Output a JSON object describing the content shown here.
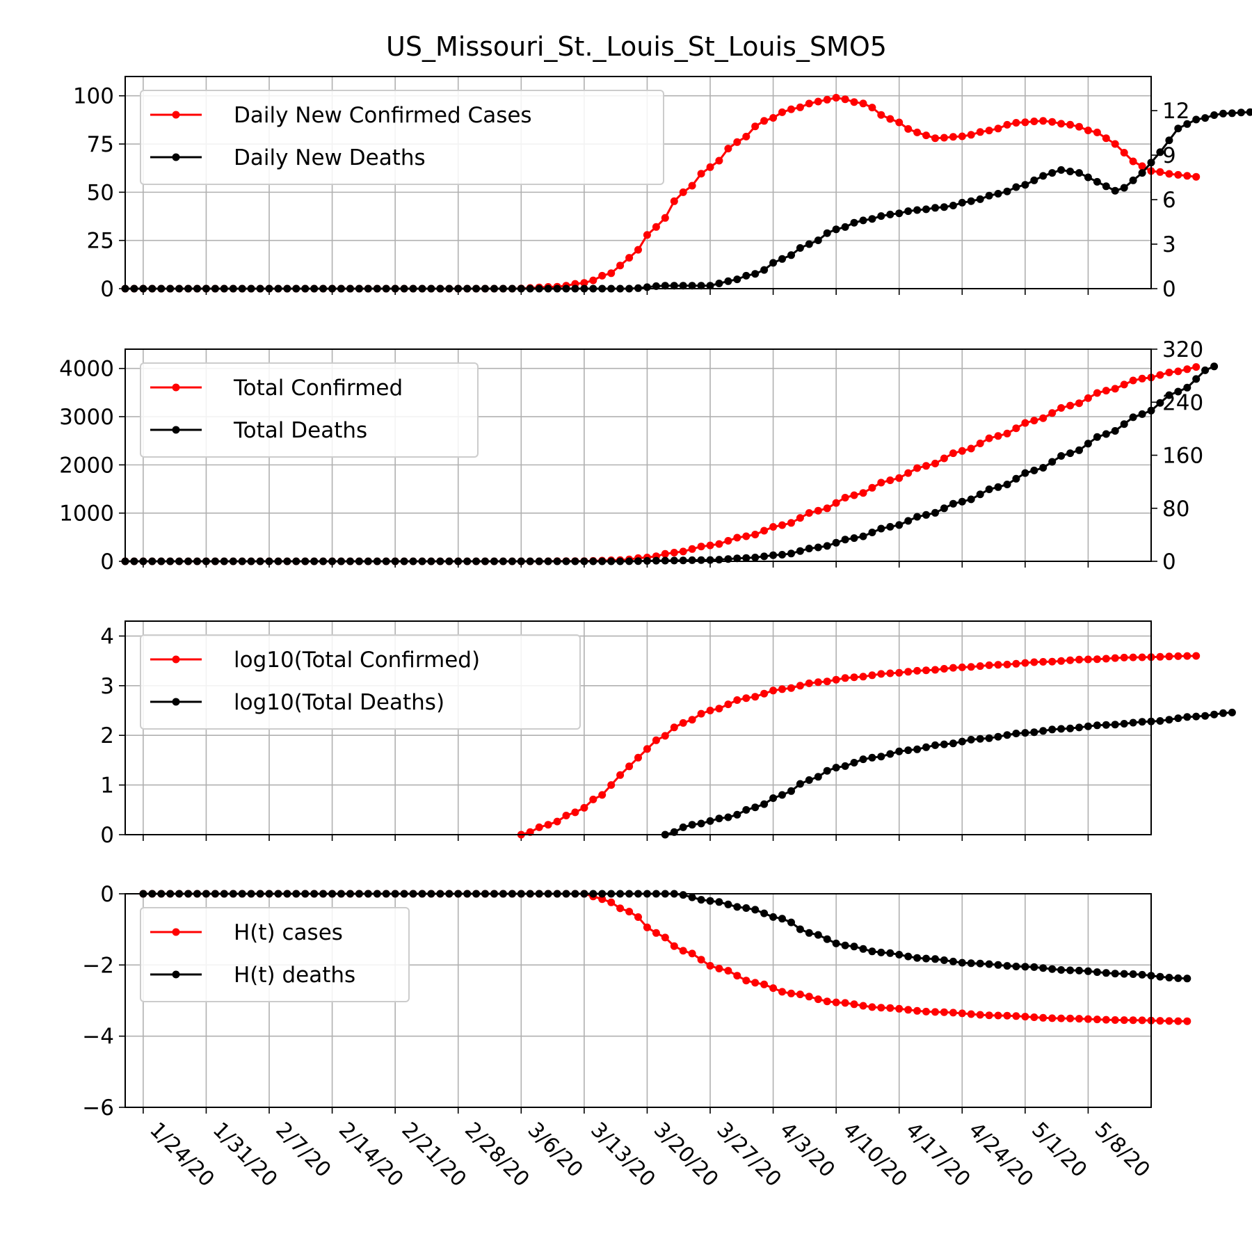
{
  "title": "US_Missouri_St._Louis_St_Louis_SMO5",
  "colors": {
    "cases": "#ff0000",
    "deaths": "#000000",
    "grid": "#b0b0b0"
  },
  "x_dates": [
    "1/24/20",
    "1/31/20",
    "2/7/20",
    "2/14/20",
    "2/21/20",
    "2/28/20",
    "3/6/20",
    "3/13/20",
    "3/20/20",
    "3/27/20",
    "4/3/20",
    "4/10/20",
    "4/17/20",
    "4/24/20",
    "5/1/20",
    "5/8/20"
  ],
  "chart_data": [
    {
      "type": "line",
      "panel": "daily",
      "x_range": [
        "1/22/20",
        "5/15/20"
      ],
      "legend_placement": "top-left",
      "grid": true,
      "ylim": [
        0,
        110
      ],
      "yticks": [
        "0",
        "25",
        "50",
        "75",
        "100"
      ],
      "ylim_right": [
        0,
        14.3
      ],
      "yticks_right": [
        "0",
        "3",
        "6",
        "9",
        "12"
      ],
      "series": [
        {
          "name": "Daily New Confirmed Cases",
          "axis": "left",
          "points": [
            [
              "1/22/20",
              0
            ],
            [
              "3/5/20",
              0
            ],
            [
              "3/10/20",
              1
            ],
            [
              "3/13/20",
              3
            ],
            [
              "3/16/20",
              8
            ],
            [
              "3/18/20",
              16
            ],
            [
              "3/21/20",
              32
            ],
            [
              "3/24/20",
              50
            ],
            [
              "3/27/20",
              63
            ],
            [
              "3/30/20",
              76
            ],
            [
              "4/2/20",
              87
            ],
            [
              "4/5/20",
              93
            ],
            [
              "4/8/20",
              97
            ],
            [
              "4/10/20",
              99
            ],
            [
              "4/13/20",
              96
            ],
            [
              "4/16/20",
              88
            ],
            [
              "4/19/20",
              81
            ],
            [
              "4/21/20",
              78
            ],
            [
              "4/24/20",
              79
            ],
            [
              "4/27/20",
              82
            ],
            [
              "4/30/20",
              86
            ],
            [
              "5/3/20",
              87
            ],
            [
              "5/6/20",
              85
            ],
            [
              "5/9/20",
              81
            ],
            [
              "5/11/20",
              75
            ],
            [
              "5/13/20",
              66
            ],
            [
              "5/15/20",
              61
            ],
            [
              "5/18/20",
              59
            ],
            [
              "5/20/20",
              58
            ]
          ]
        },
        {
          "name": "Daily New Deaths",
          "axis": "right",
          "points": [
            [
              "1/22/20",
              0
            ],
            [
              "3/18/20",
              0
            ],
            [
              "3/22/20",
              0.2
            ],
            [
              "3/27/20",
              0.2
            ],
            [
              "3/29/20",
              0.5
            ],
            [
              "4/1/20",
              1
            ],
            [
              "4/4/20",
              2
            ],
            [
              "4/7/20",
              3
            ],
            [
              "4/10/20",
              4
            ],
            [
              "4/13/20",
              4.6
            ],
            [
              "4/16/20",
              5
            ],
            [
              "4/19/20",
              5.3
            ],
            [
              "4/22/20",
              5.5
            ],
            [
              "4/25/20",
              5.9
            ],
            [
              "4/28/20",
              6.4
            ],
            [
              "5/1/20",
              7
            ],
            [
              "5/3/20",
              7.6
            ],
            [
              "5/5/20",
              8
            ],
            [
              "5/7/20",
              7.8
            ],
            [
              "5/9/20",
              7.2
            ],
            [
              "5/11/20",
              6.6
            ],
            [
              "5/12/20",
              6.8
            ],
            [
              "5/14/20",
              7.8
            ],
            [
              "5/16/20",
              9.2
            ],
            [
              "5/18/20",
              10.8
            ],
            [
              "5/20/20",
              11.4
            ],
            [
              "5/23/20",
              11.8
            ],
            [
              "5/26/20",
              11.9
            ],
            [
              "5/29/20",
              11.9
            ]
          ]
        }
      ]
    },
    {
      "type": "line",
      "panel": "totals",
      "legend_placement": "top-left",
      "grid": true,
      "ylim": [
        0,
        4400
      ],
      "yticks": [
        "0",
        "1000",
        "2000",
        "3000",
        "4000"
      ],
      "ylim_right": [
        0,
        320
      ],
      "yticks_right": [
        "0",
        "80",
        "160",
        "240",
        "320"
      ],
      "series": [
        {
          "name": "Total Confirmed",
          "axis": "left",
          "points": [
            [
              "1/22/20",
              0
            ],
            [
              "3/7/20",
              0
            ],
            [
              "3/13/20",
              5
            ],
            [
              "3/17/20",
              25
            ],
            [
              "3/20/20",
              80
            ],
            [
              "3/23/20",
              180
            ],
            [
              "3/27/20",
              330
            ],
            [
              "3/31/20",
              520
            ],
            [
              "4/4/20",
              750
            ],
            [
              "4/8/20",
              1050
            ],
            [
              "4/12/20",
              1370
            ],
            [
              "4/16/20",
              1680
            ],
            [
              "4/20/20",
              1980
            ],
            [
              "4/24/20",
              2290
            ],
            [
              "4/28/20",
              2600
            ],
            [
              "5/2/20",
              2920
            ],
            [
              "5/6/20",
              3230
            ],
            [
              "5/10/20",
              3540
            ],
            [
              "5/14/20",
              3790
            ],
            [
              "5/18/20",
              3940
            ],
            [
              "5/20/20",
              4030
            ]
          ]
        },
        {
          "name": "Total Deaths",
          "axis": "right",
          "points": [
            [
              "1/22/20",
              0
            ],
            [
              "3/17/20",
              0
            ],
            [
              "3/22/20",
              1
            ],
            [
              "3/27/20",
              2
            ],
            [
              "3/31/20",
              5
            ],
            [
              "4/4/20",
              10
            ],
            [
              "4/8/20",
              21
            ],
            [
              "4/12/20",
              35
            ],
            [
              "4/16/20",
              52
            ],
            [
              "4/20/20",
              70
            ],
            [
              "4/24/20",
              90
            ],
            [
              "4/28/20",
              112
            ],
            [
              "5/2/20",
              137
            ],
            [
              "5/6/20",
              163
            ],
            [
              "5/10/20",
              192
            ],
            [
              "5/14/20",
              222
            ],
            [
              "5/18/20",
              256
            ],
            [
              "5/22/20",
              294
            ]
          ]
        }
      ]
    },
    {
      "type": "line",
      "panel": "log10",
      "legend_placement": "top-left",
      "grid": true,
      "ylim": [
        0,
        4.3
      ],
      "yticks": [
        "0",
        "1",
        "2",
        "3",
        "4"
      ],
      "series": [
        {
          "name": "log10(Total Confirmed)",
          "axis": "left",
          "points": [
            [
              "3/6/20",
              0
            ],
            [
              "3/9/20",
              0.2
            ],
            [
              "3/12/20",
              0.45
            ],
            [
              "3/15/20",
              0.8
            ],
            [
              "3/17/20",
              1.2
            ],
            [
              "3/19/20",
              1.55
            ],
            [
              "3/21/20",
              1.9
            ],
            [
              "3/24/20",
              2.25
            ],
            [
              "3/27/20",
              2.5
            ],
            [
              "3/31/20",
              2.75
            ],
            [
              "4/4/20",
              2.93
            ],
            [
              "4/8/20",
              3.07
            ],
            [
              "4/12/20",
              3.17
            ],
            [
              "4/16/20",
              3.25
            ],
            [
              "4/20/20",
              3.31
            ],
            [
              "4/24/20",
              3.37
            ],
            [
              "4/28/20",
              3.42
            ],
            [
              "5/3/20",
              3.48
            ],
            [
              "5/8/20",
              3.53
            ],
            [
              "5/13/20",
              3.57
            ],
            [
              "5/20/20",
              3.6
            ]
          ]
        },
        {
          "name": "log10(Total Deaths)",
          "axis": "left",
          "points": [
            [
              "3/22/20",
              0
            ],
            [
              "3/25/20",
              0.2
            ],
            [
              "3/29/20",
              0.35
            ],
            [
              "4/1/20",
              0.55
            ],
            [
              "4/4/20",
              0.8
            ],
            [
              "4/7/20",
              1.1
            ],
            [
              "4/10/20",
              1.35
            ],
            [
              "4/14/20",
              1.55
            ],
            [
              "4/18/20",
              1.7
            ],
            [
              "4/22/20",
              1.82
            ],
            [
              "4/26/20",
              1.93
            ],
            [
              "5/1/20",
              2.05
            ],
            [
              "5/5/20",
              2.13
            ],
            [
              "5/10/20",
              2.21
            ],
            [
              "5/15/20",
              2.28
            ],
            [
              "5/20/20",
              2.38
            ],
            [
              "5/24/20",
              2.46
            ]
          ]
        }
      ]
    },
    {
      "type": "line",
      "panel": "H(t)",
      "legend_placement": "top-left",
      "grid": true,
      "ylim": [
        -6,
        0
      ],
      "yticks": [
        "−6",
        "−4",
        "−2",
        "0"
      ],
      "series": [
        {
          "name": "H(t) cases",
          "axis": "left",
          "points": [
            [
              "1/24/20",
              0
            ],
            [
              "3/13/20",
              0
            ],
            [
              "3/15/20",
              -0.15
            ],
            [
              "3/18/20",
              -0.5
            ],
            [
              "3/21/20",
              -1.1
            ],
            [
              "3/24/20",
              -1.6
            ],
            [
              "3/28/20",
              -2.1
            ],
            [
              "4/1/20",
              -2.5
            ],
            [
              "4/5/20",
              -2.8
            ],
            [
              "4/10/20",
              -3.05
            ],
            [
              "4/15/20",
              -3.2
            ],
            [
              "4/21/20",
              -3.32
            ],
            [
              "4/28/20",
              -3.42
            ],
            [
              "5/5/20",
              -3.5
            ],
            [
              "5/12/20",
              -3.55
            ],
            [
              "5/19/20",
              -3.58
            ]
          ]
        },
        {
          "name": "H(t) deaths",
          "axis": "left",
          "points": [
            [
              "1/24/20",
              0
            ],
            [
              "3/13/20",
              0
            ],
            [
              "3/23/20",
              0
            ],
            [
              "3/27/20",
              -0.2
            ],
            [
              "3/31/20",
              -0.4
            ],
            [
              "4/4/20",
              -0.7
            ],
            [
              "4/7/20",
              -1.1
            ],
            [
              "4/11/20",
              -1.45
            ],
            [
              "4/15/20",
              -1.65
            ],
            [
              "4/20/20",
              -1.82
            ],
            [
              "4/25/20",
              -1.95
            ],
            [
              "5/1/20",
              -2.05
            ],
            [
              "5/6/20",
              -2.15
            ],
            [
              "5/12/20",
              -2.25
            ],
            [
              "5/19/20",
              -2.38
            ]
          ]
        }
      ]
    }
  ]
}
